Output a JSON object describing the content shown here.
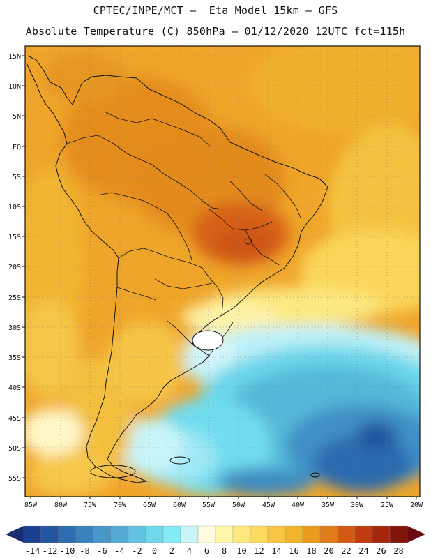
{
  "header": {
    "line1": "CPTEC/INPE/MCT –  Eta Model 15km – GFS",
    "line2": "Absolute Temperature (C) 850hPa – 01/12/2020 12UTC fct=115h"
  },
  "axes": {
    "lat_labels": [
      "15N",
      "10N",
      "5N",
      "EQ",
      "5S",
      "10S",
      "15S",
      "20S",
      "25S",
      "30S",
      "35S",
      "40S",
      "45S",
      "50S",
      "55S"
    ],
    "lon_labels": [
      "85W",
      "80W",
      "75W",
      "70W",
      "65W",
      "60W",
      "55W",
      "50W",
      "45W",
      "40W",
      "35W",
      "30W",
      "25W",
      "20W"
    ]
  },
  "colorbar": {
    "ticks": [
      "-14",
      "-12",
      "-10",
      "-8",
      "-6",
      "-4",
      "-2",
      "0",
      "2",
      "4",
      "6",
      "8",
      "10",
      "12",
      "14",
      "16",
      "18",
      "20",
      "22",
      "24",
      "26",
      "28"
    ],
    "colors": [
      "#1b3f8f",
      "#23569e",
      "#2e6daf",
      "#3a82be",
      "#4797c9",
      "#56abd4",
      "#62c2df",
      "#6fd8ea",
      "#84ebf5",
      "#c8f4fa",
      "#fffbe0",
      "#fff8a8",
      "#ffe97e",
      "#fddb61",
      "#f7c743",
      "#f0b52b",
      "#ea9b1c",
      "#e07c1a",
      "#d45a14",
      "#c13c0f",
      "#a5260c",
      "#81150a"
    ],
    "low_arrow_color": "#1b2d70",
    "high_arrow_color": "#6b0b0f"
  }
}
